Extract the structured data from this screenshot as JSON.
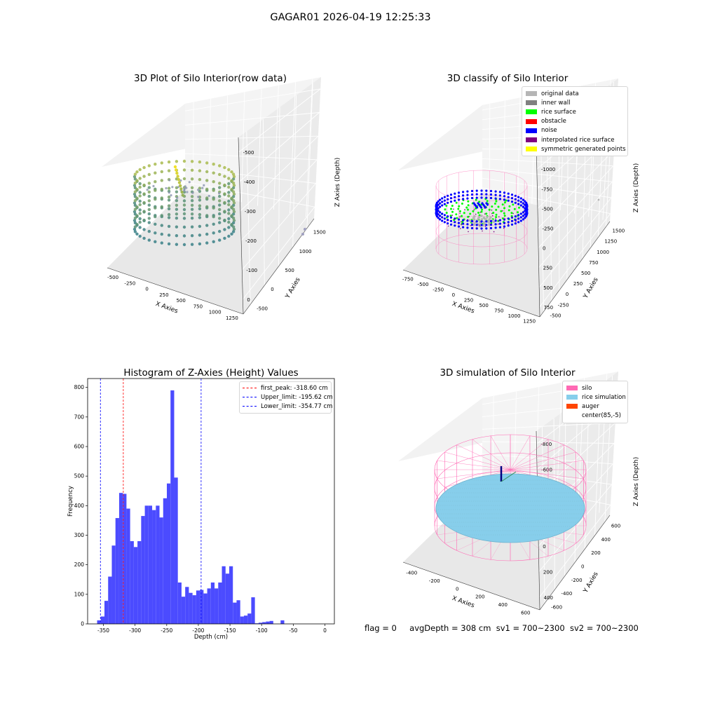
{
  "suptitle": "GAGAR01 2026-04-19 12:25:33",
  "colors": {
    "raw_low": "#2a788e",
    "raw_high": "#fde725",
    "original": "#b5b5b5",
    "inner_wall": "#808080",
    "rice_surface": "#00ff00",
    "obstacle": "#ff0000",
    "noise": "#0000ff",
    "interpolated": "#800080",
    "symmetric": "#ffff00",
    "silo": "#ff69b4",
    "rice_sim": "#87ceeb",
    "auger": "#ff4500",
    "hist_bar": "#4b4bff"
  },
  "panels": {
    "raw": {
      "title": "3D Plot of Silo Interior(row data)",
      "x_label": "X Axies",
      "y_label": "Y Axies",
      "z_label": "Z Axies (Depth)",
      "x_ticks": [
        "-500",
        "-250",
        "0",
        "250",
        "500",
        "750",
        "1000",
        "1250"
      ],
      "y_ticks": [
        "-500",
        "0",
        "500",
        "1000",
        "1500"
      ],
      "z_ticks": [
        "0",
        "-100",
        "-200",
        "-300",
        "-400",
        "-500"
      ]
    },
    "classify": {
      "title": "3D classify of Silo Interior",
      "x_label": "X Axies",
      "y_label": "Y Axies",
      "z_label": "Z Axies (Depth)",
      "x_ticks": [
        "-750",
        "-500",
        "-250",
        "0",
        "250",
        "500",
        "750",
        "1000",
        "1250"
      ],
      "y_ticks": [
        "-500",
        "-250",
        "0",
        "250",
        "500",
        "750",
        "1000",
        "1250",
        "1500"
      ],
      "z_ticks": [
        "750",
        "500",
        "250",
        "0",
        "-250",
        "-500",
        "-750",
        "-1000",
        "-1250"
      ],
      "legend": [
        {
          "label": "original data",
          "color": "#b5b5b5"
        },
        {
          "label": "inner wall",
          "color": "#808080"
        },
        {
          "label": "rice surface",
          "color": "#00ff00"
        },
        {
          "label": "obstacle",
          "color": "#ff0000"
        },
        {
          "label": "noise",
          "color": "#0000ff"
        },
        {
          "label": "interpolated rice surface",
          "color": "#800080"
        },
        {
          "label": "symmetric generated points",
          "color": "#ffff00"
        }
      ]
    },
    "simulation": {
      "title": "3D simulation of Silo Interior",
      "x_label": "X Axies",
      "y_label": "Y Axies",
      "z_label": "Z Axies (Depth)",
      "x_ticks": [
        "-400",
        "-200",
        "0",
        "200",
        "400",
        "600"
      ],
      "y_ticks": [
        "-600",
        "-400",
        "-200",
        "0",
        "200",
        "400",
        "600"
      ],
      "z_ticks": [
        "400",
        "200",
        "0",
        "-200",
        "-400",
        "-600",
        "-800"
      ],
      "legend": [
        {
          "label": "silo",
          "color": "#ff69b4"
        },
        {
          "label": "rice simulation",
          "color": "#87ceeb"
        },
        {
          "label": "auger",
          "color": "#ff4500"
        },
        {
          "label": "center(85,-5)",
          "color": "#ffffff"
        }
      ]
    }
  },
  "status": {
    "flag": "flag = 0",
    "avg_depth": "avgDepth = 308 cm",
    "sv1": "sv1 = 700~2300",
    "sv2": "sv2 = 700~2300"
  },
  "chart_data": [
    {
      "type": "bar",
      "title": "Histogram of Z-Axies (Height) Values",
      "xlabel": "Depth (cm)",
      "ylabel": "Frequency",
      "xlim": [
        -375,
        15
      ],
      "ylim": [
        0,
        830
      ],
      "x_ticks": [
        -350,
        -300,
        -250,
        -200,
        -150,
        -100,
        -50,
        0
      ],
      "y_ticks": [
        0,
        100,
        200,
        300,
        400,
        500,
        600,
        700,
        800
      ],
      "bin_width": 5.8,
      "bin_start": -360,
      "values": [
        12,
        25,
        78,
        160,
        265,
        358,
        443,
        440,
        390,
        280,
        260,
        280,
        365,
        400,
        400,
        385,
        400,
        360,
        425,
        475,
        790,
        495,
        140,
        92,
        125,
        105,
        97,
        113,
        115,
        103,
        120,
        140,
        120,
        140,
        195,
        170,
        195,
        72,
        80,
        25,
        28,
        35,
        90,
        2,
        4,
        6,
        8,
        10,
        0,
        0,
        12
      ],
      "vlines": [
        {
          "x": -318.6,
          "label": "first_peak: -318.60 cm",
          "color": "#ff0000"
        },
        {
          "x": -195.62,
          "label": "Upper_limit: -195.62 cm",
          "color": "#0000ff"
        },
        {
          "x": -354.77,
          "label": "Lower_limit: -354.77 cm",
          "color": "#0000ff"
        }
      ]
    }
  ]
}
